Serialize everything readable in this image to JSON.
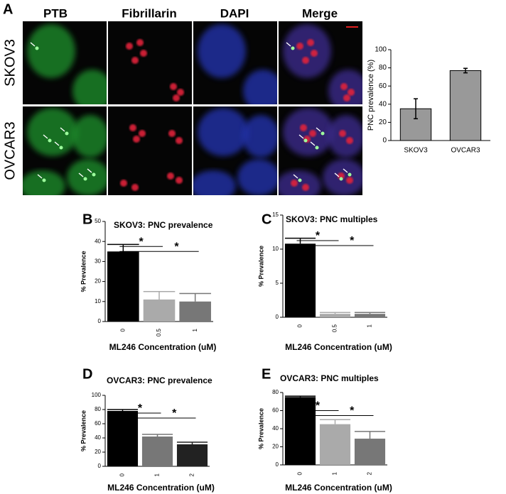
{
  "panel_labels": [
    "A",
    "B",
    "C",
    "D",
    "E"
  ],
  "microscopy": {
    "columns": [
      "PTB",
      "Fibrillarin",
      "DAPI",
      "Merge"
    ],
    "rows": [
      "SKOV3",
      "OVCAR3"
    ]
  },
  "chart_data": [
    {
      "type": "bar",
      "ylabel": "PNC prevalence (%)",
      "categories": [
        "SKOV3",
        "OVCAR3"
      ],
      "values": [
        35,
        77
      ],
      "errors": [
        11,
        2.5
      ],
      "color": "#999999",
      "ylim": [
        0,
        100
      ],
      "yticks": [
        0,
        20,
        40,
        60,
        80,
        100
      ]
    },
    {
      "type": "bar",
      "title": "SKOV3:  PNC prevalence",
      "ylabel": "% Prevalence",
      "xlabel": "ML246  Concentration (uM)",
      "categories": [
        "0",
        "0.5",
        "1"
      ],
      "values": [
        35,
        11,
        10
      ],
      "errors": [
        3.5,
        4,
        4
      ],
      "colors": [
        "#000000",
        "#aaaaaa",
        "#777777"
      ],
      "annotations": [
        "*",
        "*"
      ],
      "ylim": [
        0,
        50
      ],
      "yticks": [
        0,
        10,
        20,
        30,
        40,
        50
      ]
    },
    {
      "type": "bar",
      "title": "SKOV3:  PNC multiples",
      "ylabel": "% Prevalence",
      "xlabel": "ML246  Concentration (uM)",
      "categories": [
        "0",
        "0.5",
        "1"
      ],
      "values": [
        10.8,
        0.5,
        0.5
      ],
      "errors": [
        0.8,
        0.2,
        0.2
      ],
      "colors": [
        "#000000",
        "#aaaaaa",
        "#777777"
      ],
      "annotations": [
        "*",
        "*"
      ],
      "ylim": [
        0,
        15
      ],
      "yticks": [
        0,
        5,
        10,
        15
      ]
    },
    {
      "type": "bar",
      "title": "OVCAR3:  PNC prevalence",
      "ylabel": "% Prevalence",
      "xlabel": "ML246  Concentration (uM)",
      "categories": [
        "0",
        "1",
        "2"
      ],
      "values": [
        78,
        42,
        31
      ],
      "errors": [
        2,
        3,
        3
      ],
      "colors": [
        "#000000",
        "#777777",
        "#222222"
      ],
      "annotations": [
        "*",
        "*"
      ],
      "ylim": [
        0,
        100
      ],
      "yticks": [
        0,
        20,
        40,
        60,
        80,
        100
      ]
    },
    {
      "type": "bar",
      "title": "OVCAR3:  PNC multiples",
      "ylabel": "% Prevalence",
      "xlabel": "ML246  Concentration (uM)",
      "categories": [
        "0",
        "1",
        "2"
      ],
      "values": [
        75,
        45,
        29
      ],
      "errors": [
        1,
        5,
        8
      ],
      "colors": [
        "#000000",
        "#aaaaaa",
        "#777777"
      ],
      "annotations": [
        "*",
        "*"
      ],
      "ylim": [
        0,
        80
      ],
      "yticks": [
        0,
        20,
        40,
        60,
        80
      ]
    }
  ]
}
